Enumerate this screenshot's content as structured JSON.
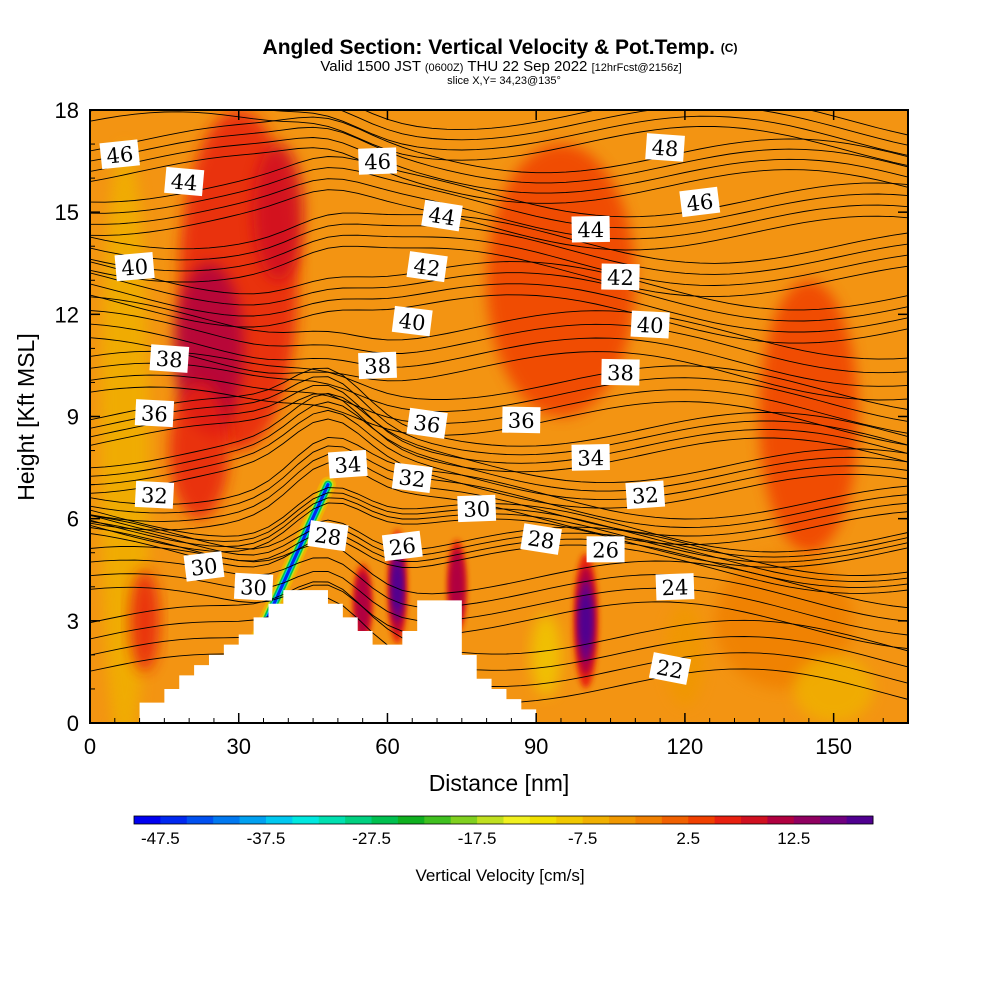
{
  "header": {
    "title": "Angled Section: Vertical Velocity & Pot.Temp.",
    "title_unit": "(C)",
    "valid_prefix": "Valid 1500 JST",
    "valid_utc": "(0600Z)",
    "valid_date": "THU 22 Sep 2022",
    "forecast": "[12hrFcst@2156z]",
    "slice": "slice X,Y= 34,23@135°"
  },
  "chart_data": {
    "type": "heatmap",
    "xlabel": "Distance [nm]",
    "ylabel": "Height [Kft MSL]",
    "xlim": [
      0,
      165
    ],
    "ylim": [
      0,
      18
    ],
    "xticks": [
      0,
      30,
      60,
      90,
      120,
      150
    ],
    "yticks": [
      0,
      3,
      6,
      9,
      12,
      15,
      18
    ],
    "grid": false,
    "fill_variable": "Vertical Velocity [cm/s]",
    "contour_variable": "Potential Temperature (C)",
    "colorbar": {
      "label": "Vertical Velocity [cm/s]",
      "tick_labels": [
        "-47.5",
        "-37.5",
        "-27.5",
        "-17.5",
        "-7.5",
        "2.5",
        "12.5"
      ],
      "min": -50,
      "max": 20,
      "step": 2.5,
      "colors": [
        "#0000f0",
        "#0028f0",
        "#0050f0",
        "#0078f0",
        "#00a0f0",
        "#00c8f0",
        "#00e8e0",
        "#00e0b0",
        "#00d080",
        "#00c050",
        "#10b020",
        "#40c020",
        "#80d020",
        "#c0e020",
        "#f0f020",
        "#f0e000",
        "#f0c800",
        "#f0b000",
        "#f09800",
        "#f08000",
        "#f06000",
        "#f04000",
        "#e82010",
        "#d01020",
        "#b00040",
        "#900060",
        "#700080",
        "#500090"
      ]
    },
    "updraft_cores": [
      {
        "x": 24,
        "z": 11,
        "w": 12.5
      },
      {
        "x": 37,
        "z": 15,
        "w": 7.5
      },
      {
        "x": 62,
        "z": 4,
        "w": 17.5
      },
      {
        "x": 100,
        "z": 3,
        "w": 17.5
      },
      {
        "x": 74,
        "z": 4,
        "w": 10
      },
      {
        "x": 11,
        "z": 3,
        "w": 5
      }
    ],
    "downdraft_zone": {
      "x_range": [
        34,
        48
      ],
      "z_range": [
        2.5,
        7
      ],
      "w_min": -47.5
    },
    "contour_labels": [
      {
        "text": "46",
        "x": 6,
        "z": 16.7
      },
      {
        "text": "44",
        "x": 19,
        "z": 15.9
      },
      {
        "text": "46",
        "x": 58,
        "z": 16.5
      },
      {
        "text": "48",
        "x": 116,
        "z": 16.9
      },
      {
        "text": "46",
        "x": 123,
        "z": 15.3
      },
      {
        "text": "44",
        "x": 71,
        "z": 14.9
      },
      {
        "text": "44",
        "x": 101,
        "z": 14.5
      },
      {
        "text": "40",
        "x": 9,
        "z": 13.4
      },
      {
        "text": "42",
        "x": 68,
        "z": 13.4
      },
      {
        "text": "42",
        "x": 107,
        "z": 13.1
      },
      {
        "text": "40",
        "x": 65,
        "z": 11.8
      },
      {
        "text": "40",
        "x": 113,
        "z": 11.7
      },
      {
        "text": "38",
        "x": 16,
        "z": 10.7
      },
      {
        "text": "38",
        "x": 58,
        "z": 10.5
      },
      {
        "text": "38",
        "x": 107,
        "z": 10.3
      },
      {
        "text": "36",
        "x": 13,
        "z": 9.1
      },
      {
        "text": "36",
        "x": 68,
        "z": 8.8
      },
      {
        "text": "36",
        "x": 87,
        "z": 8.9
      },
      {
        "text": "34",
        "x": 52,
        "z": 7.6
      },
      {
        "text": "34",
        "x": 101,
        "z": 7.8
      },
      {
        "text": "32",
        "x": 13,
        "z": 6.7
      },
      {
        "text": "32",
        "x": 65,
        "z": 7.2
      },
      {
        "text": "32",
        "x": 112,
        "z": 6.7
      },
      {
        "text": "30",
        "x": 78,
        "z": 6.3
      },
      {
        "text": "28",
        "x": 48,
        "z": 5.5
      },
      {
        "text": "28",
        "x": 91,
        "z": 5.4
      },
      {
        "text": "26",
        "x": 63,
        "z": 5.2
      },
      {
        "text": "26",
        "x": 104,
        "z": 5.1
      },
      {
        "text": "30",
        "x": 23,
        "z": 4.6
      },
      {
        "text": "30",
        "x": 33,
        "z": 4.0
      },
      {
        "text": "24",
        "x": 118,
        "z": 4.0
      },
      {
        "text": "22",
        "x": 117,
        "z": 1.6
      }
    ],
    "terrain": [
      [
        10,
        0.6
      ],
      [
        15,
        1.0
      ],
      [
        18,
        1.4
      ],
      [
        21,
        1.7
      ],
      [
        24,
        2.0
      ],
      [
        27,
        2.3
      ],
      [
        30,
        2.6
      ],
      [
        33,
        3.1
      ],
      [
        36,
        3.5
      ],
      [
        39,
        3.9
      ],
      [
        45,
        3.9
      ],
      [
        48,
        3.5
      ],
      [
        51,
        3.1
      ],
      [
        54,
        2.7
      ],
      [
        57,
        2.3
      ],
      [
        60,
        2.3
      ],
      [
        63,
        2.7
      ],
      [
        66,
        3.6
      ],
      [
        72,
        3.6
      ],
      [
        75,
        2.0
      ],
      [
        78,
        1.3
      ],
      [
        81,
        1.0
      ],
      [
        84,
        0.7
      ],
      [
        87,
        0.4
      ],
      [
        90,
        0.2
      ]
    ]
  }
}
